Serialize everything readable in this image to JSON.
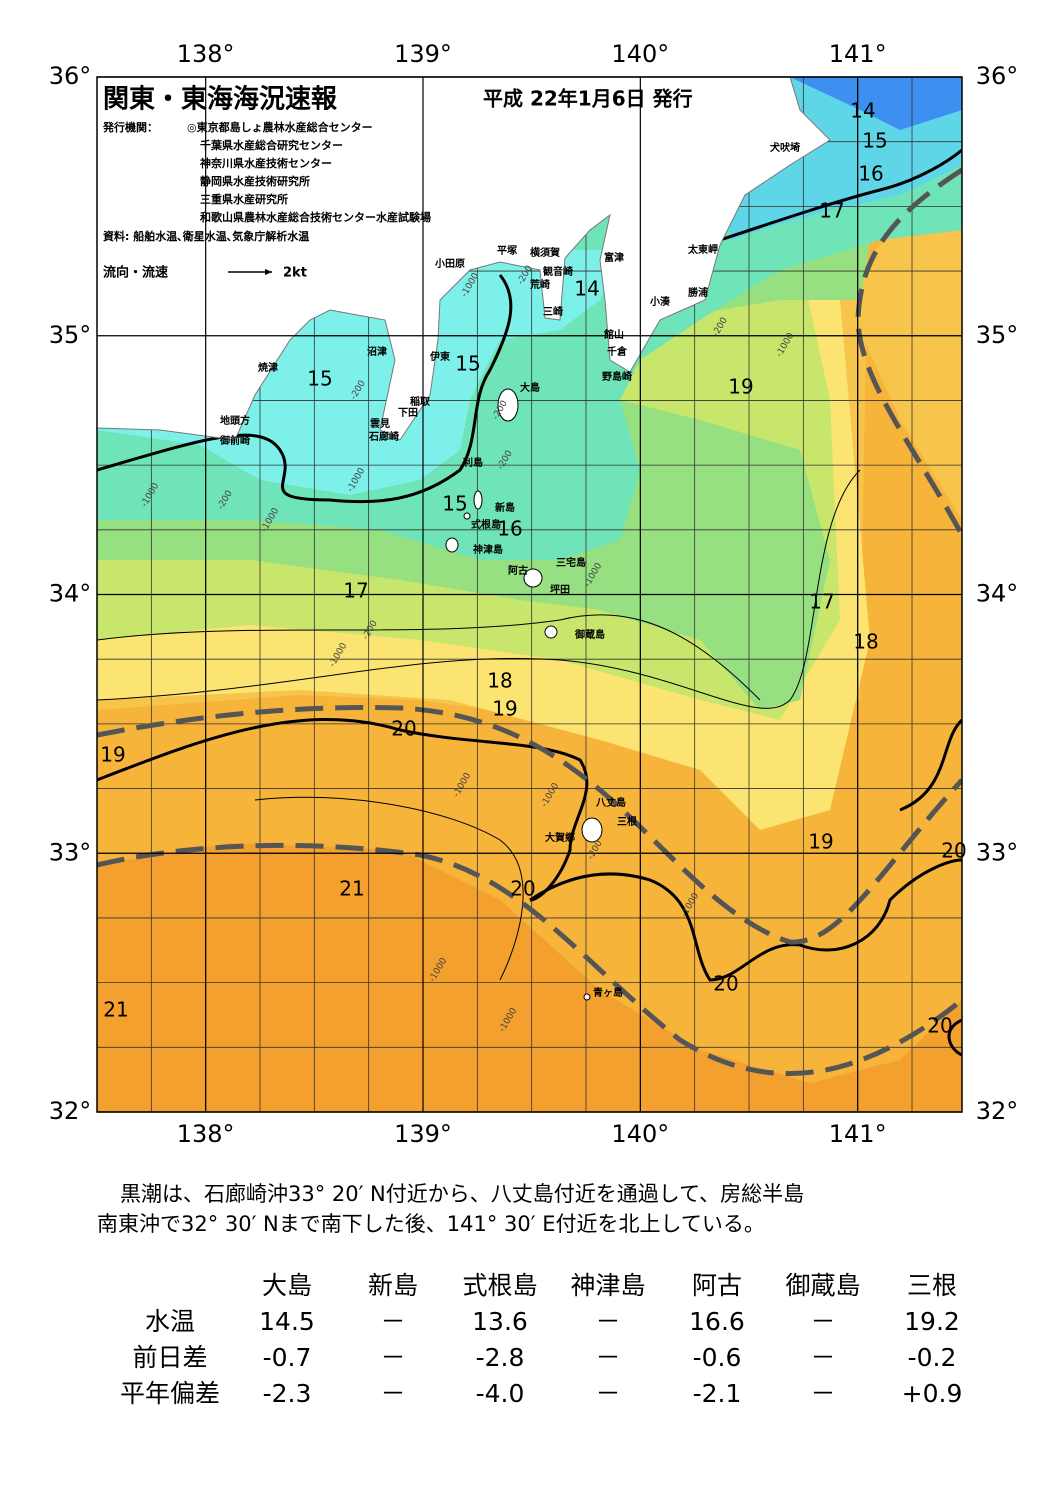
{
  "map": {
    "title": "関東・東海海況速報",
    "date": "平成 22年1月6日 発行",
    "issuer_label": "発行機関：",
    "issuers": [
      "◎東京都島しょ農林水産総合センター",
      "千葉県水産総合研究センター",
      "神奈川県水産技術センター",
      "静岡県水産技術研究所",
      "三重県水産研究所",
      "和歌山県農林水産総合技術センター水産試験場"
    ],
    "source": "資料: 船舶水温､衛星水温､気象庁解析水温",
    "legend_label": "流向・流速",
    "legend_speed": "2kt",
    "lon_range": [
      137.5,
      141.48
    ],
    "lat_range": [
      32,
      36
    ],
    "lon_ticks": [
      {
        "value": 138,
        "label": "138°"
      },
      {
        "value": 139,
        "label": "139°"
      },
      {
        "value": 140,
        "label": "140°"
      },
      {
        "value": 141,
        "label": "141°"
      }
    ],
    "lat_ticks": [
      {
        "value": 32,
        "label": "32°"
      },
      {
        "value": 33,
        "label": "33°"
      },
      {
        "value": 34,
        "label": "34°"
      },
      {
        "value": 35,
        "label": "35°"
      },
      {
        "value": 36,
        "label": "36°"
      }
    ],
    "places": [
      "犬吠埼",
      "太東岬",
      "勝浦",
      "小湊",
      "富津",
      "横須賀",
      "観音崎",
      "平塚",
      "小田原",
      "荒崎",
      "三崎",
      "館山",
      "千倉",
      "野島崎",
      "沼津",
      "焼津",
      "伊東",
      "大島",
      "稲取",
      "下田",
      "雲見",
      "石廊崎",
      "地頭方",
      "御前崎",
      "利島",
      "新島",
      "式根島",
      "神津島",
      "阿古",
      "三宅島",
      "坪田",
      "御蔵島",
      "八丈島",
      "三根",
      "大賀郷",
      "青ヶ島"
    ],
    "isotherm_labels": [
      14,
      15,
      16,
      17,
      14,
      15,
      15,
      19,
      15,
      16,
      17,
      17,
      18,
      18,
      19,
      20,
      19,
      19,
      20,
      21,
      20,
      20,
      21,
      20
    ],
    "depth_labels": [
      -1000,
      -200,
      -200,
      -1000,
      -200,
      -200,
      -1000,
      -200,
      -1000,
      -200,
      -1000,
      -1000,
      -200,
      -1000,
      -1000,
      -1000,
      -200,
      -1000,
      -1000,
      -1000
    ]
  },
  "text": [
    "黒潮は、石廊崎沖33° 20′ N付近から、八丈島付近を通過して、房総半島",
    "南東沖で32° 30′ Nまで南下した後、141° 30′ E付近を北上している。"
  ],
  "table": {
    "header": [
      "大島",
      "新島",
      "式根島",
      "神津島",
      "阿古",
      "御蔵島",
      "三根"
    ],
    "rows": [
      [
        "水温",
        "14.5",
        "－",
        "13.6",
        "－",
        "16.6",
        "－",
        "19.2"
      ],
      [
        "前日差",
        "-0.7",
        "－",
        "-2.8",
        "－",
        "-0.6",
        "－",
        "-0.2"
      ],
      [
        "平年偏差",
        "-2.3",
        "－",
        "-4.0",
        "－",
        "-2.1",
        "－",
        "+0.9"
      ]
    ]
  }
}
